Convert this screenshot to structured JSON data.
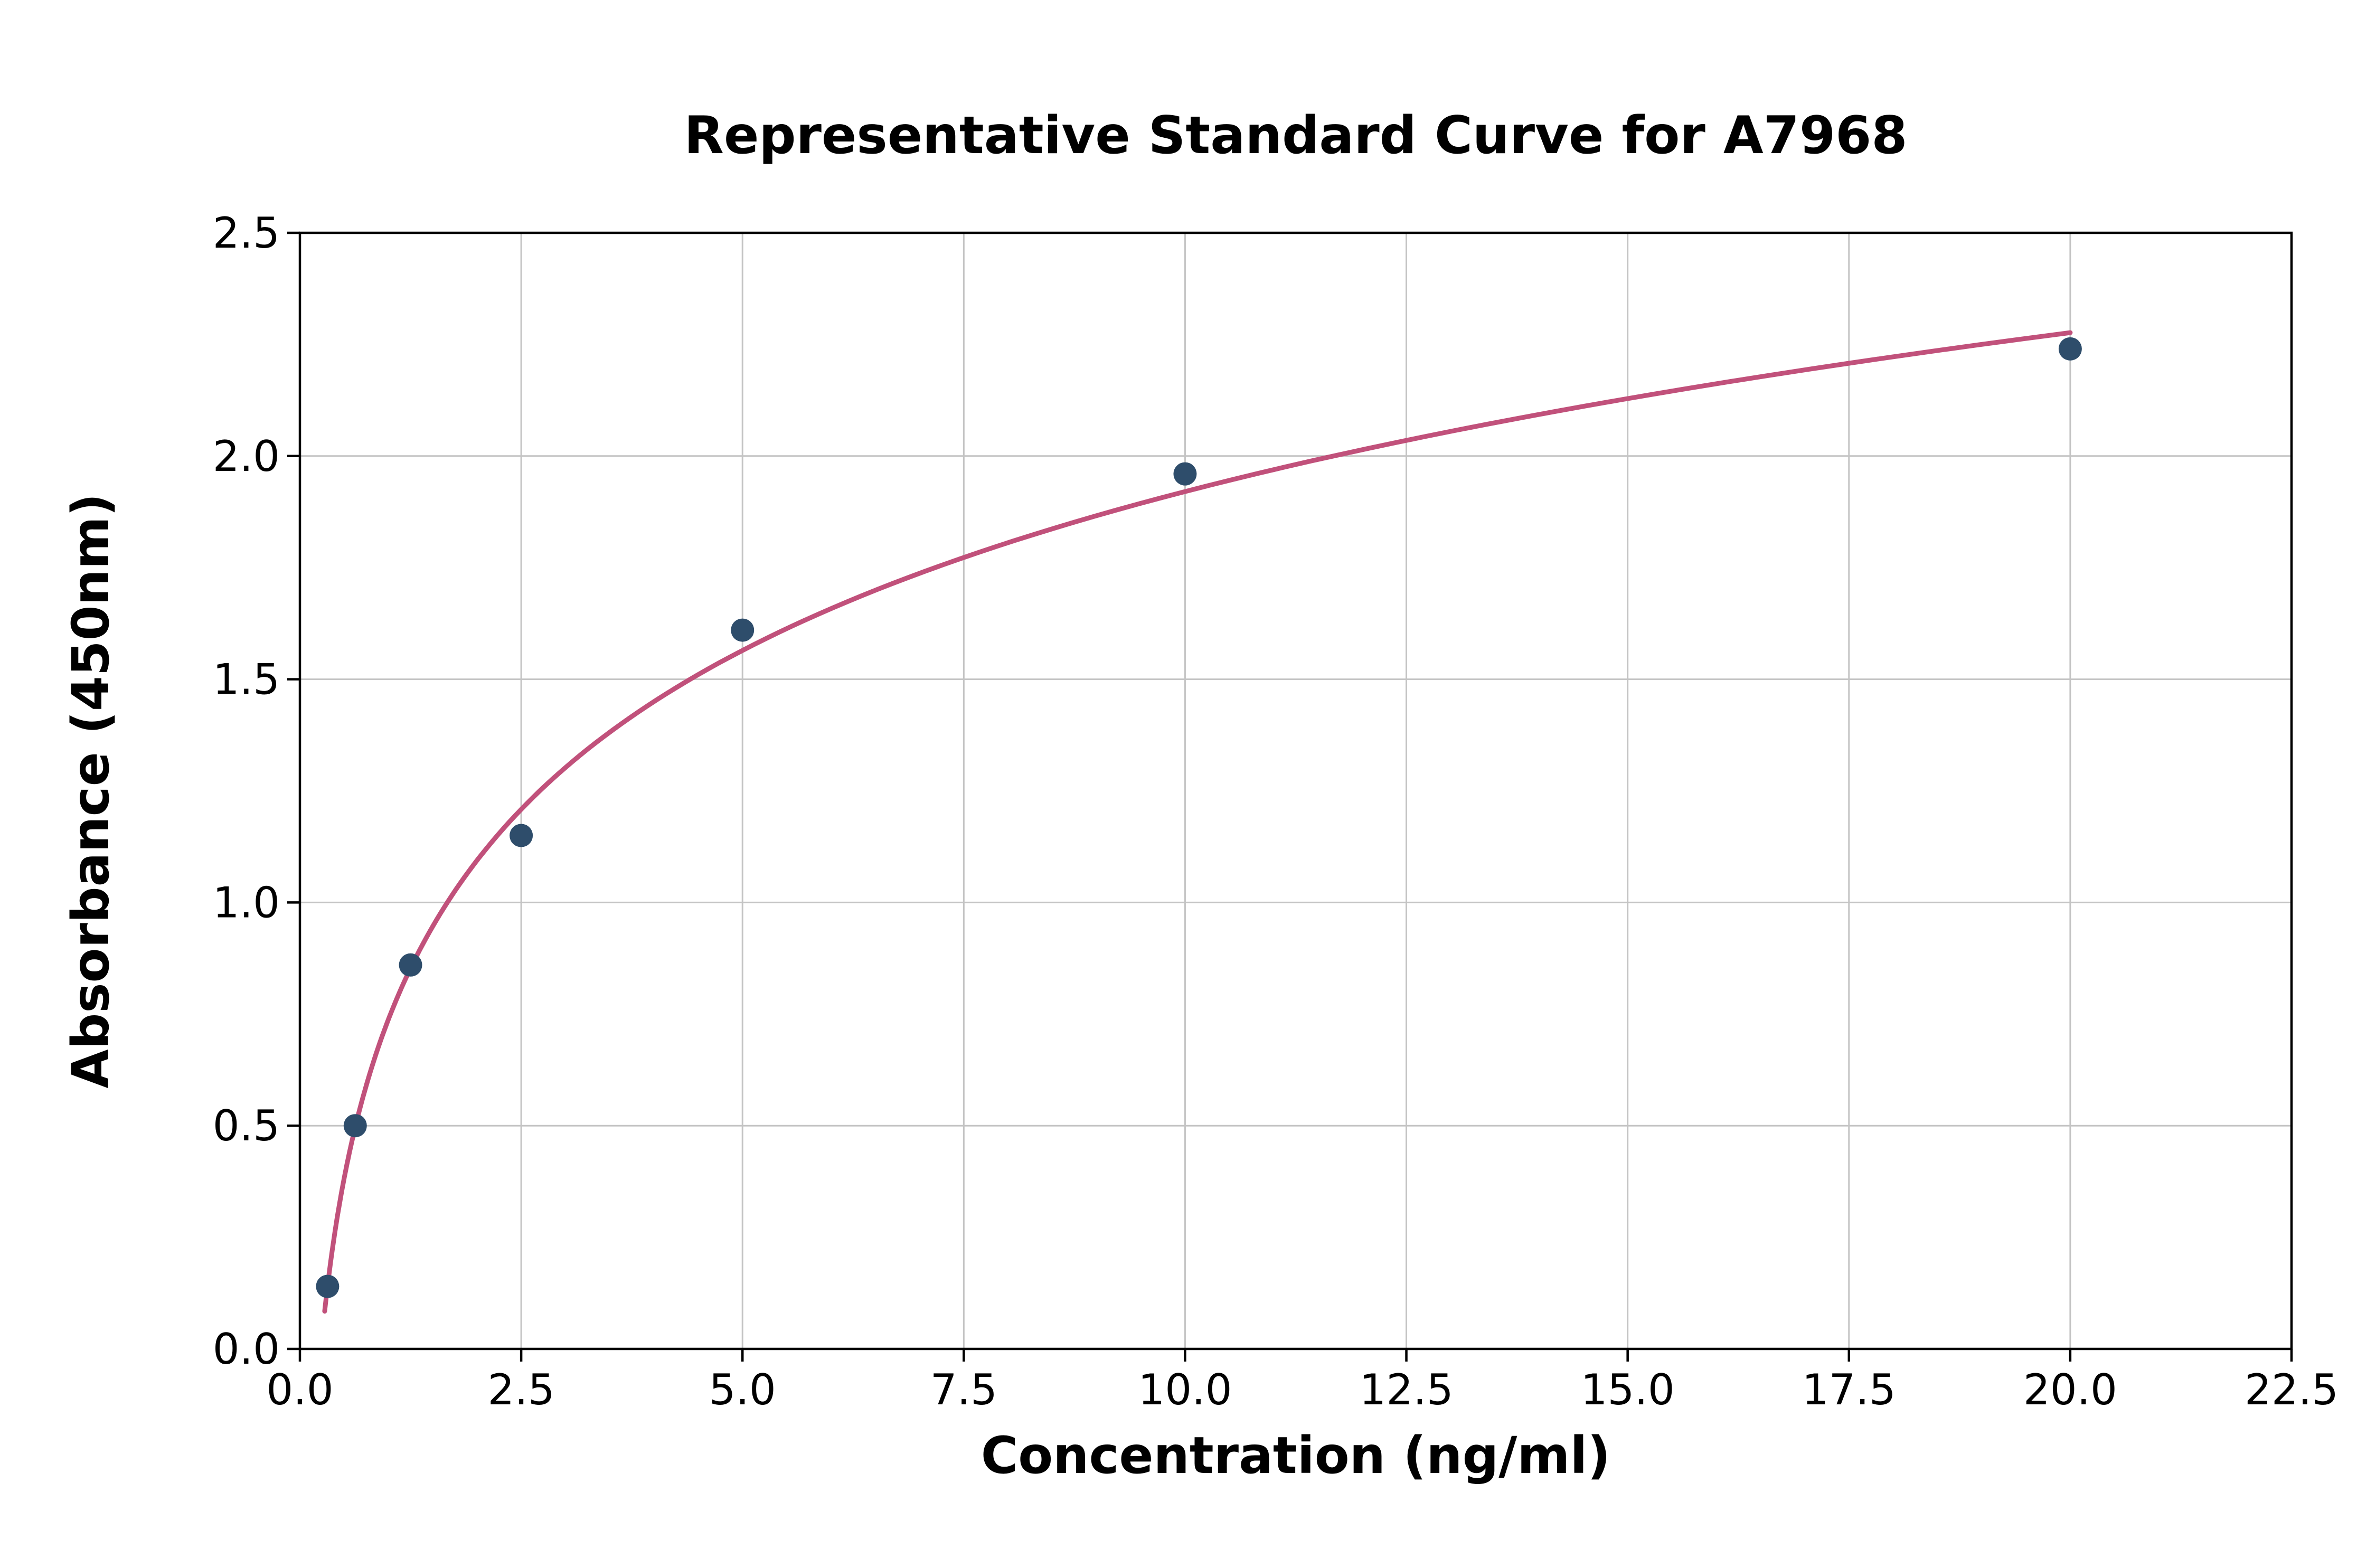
{
  "chart_data": {
    "type": "scatter",
    "title": "Representative Standard Curve for A7968",
    "xlabel": "Concentration (ng/ml)",
    "ylabel": "Absorbance (450nm)",
    "xlim": [
      0,
      22.5
    ],
    "ylim": [
      0,
      2.5
    ],
    "x_ticks": [
      0.0,
      2.5,
      5.0,
      7.5,
      10.0,
      12.5,
      15.0,
      17.5,
      20.0,
      22.5
    ],
    "y_ticks": [
      0.0,
      0.5,
      1.0,
      1.5,
      2.0,
      2.5
    ],
    "grid": true,
    "legend": "none",
    "points": [
      {
        "x": 0.3125,
        "y": 0.14
      },
      {
        "x": 0.625,
        "y": 0.5
      },
      {
        "x": 1.25,
        "y": 0.86
      },
      {
        "x": 2.5,
        "y": 1.15
      },
      {
        "x": 5.0,
        "y": 1.61
      },
      {
        "x": 10.0,
        "y": 1.96
      },
      {
        "x": 20.0,
        "y": 2.24
      }
    ],
    "fit_curve": {
      "model": "y = a*ln(x) + b",
      "a": 0.5135,
      "b": 0.7381,
      "x_start": 0.28,
      "x_end": 20.0
    },
    "colors": {
      "points": "#2e4d6b",
      "curve": "#c1517b",
      "grid": "#c4c4c4",
      "axis": "#000000",
      "background": "#ffffff"
    }
  }
}
